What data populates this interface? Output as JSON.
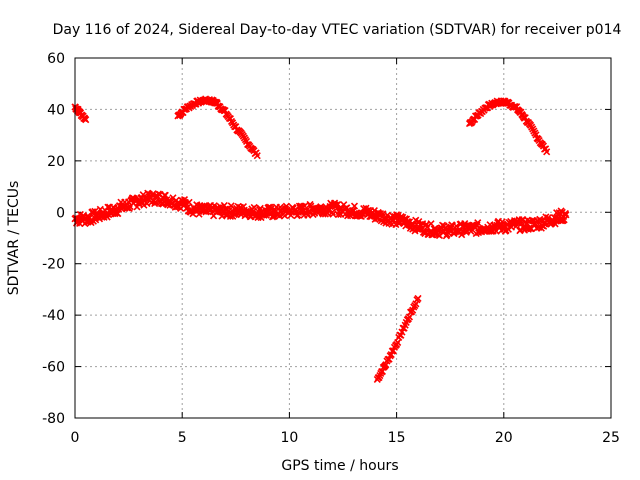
{
  "chart_data": {
    "type": "scatter",
    "title": "Day 116 of 2024, Sidereal Day-to-day VTEC variation (SDTVAR) for receiver p014",
    "xlabel": "GPS time / hours",
    "ylabel": "SDTVAR / TECUs",
    "xlim": [
      0,
      25
    ],
    "ylim": [
      -80,
      60
    ],
    "xticks": [
      0,
      5,
      10,
      15,
      20,
      25
    ],
    "yticks": [
      -80,
      -60,
      -40,
      -20,
      0,
      20,
      40,
      60
    ],
    "xtick_labels": [
      "0",
      "5",
      "10",
      "15",
      "20",
      "25"
    ],
    "ytick_labels": [
      "-80",
      "-60",
      "-40",
      "-20",
      "0",
      "20",
      "40",
      "60"
    ],
    "grid": true,
    "marker_color": "#ff0000",
    "series": [
      {
        "name": "main-band",
        "band_halfwidth": 2.2,
        "x": [
          0.0,
          0.5,
          1.0,
          1.5,
          2.0,
          2.5,
          3.0,
          3.5,
          4.0,
          4.5,
          5.0,
          5.5,
          6.0,
          6.5,
          7.0,
          7.5,
          8.0,
          8.5,
          9.0,
          9.5,
          10.0,
          10.5,
          11.0,
          11.5,
          12.0,
          12.5,
          13.0,
          13.5,
          14.0,
          14.5,
          15.0,
          15.5,
          16.0,
          16.5,
          17.0,
          17.5,
          18.0,
          18.5,
          19.0,
          19.5,
          20.0,
          20.5,
          21.0,
          21.5,
          22.0,
          22.5,
          22.9
        ],
        "y": [
          -2.5,
          -2.5,
          -1.5,
          0.0,
          1.5,
          3.0,
          4.5,
          5.5,
          5.5,
          4.5,
          3.5,
          1.5,
          0.5,
          0.5,
          0.5,
          0.5,
          0.5,
          0.0,
          0.0,
          0.0,
          0.5,
          0.5,
          1.0,
          1.5,
          1.5,
          1.0,
          0.5,
          0.0,
          -1.0,
          -2.0,
          -3.0,
          -4.0,
          -5.5,
          -6.5,
          -7.0,
          -7.0,
          -6.5,
          -6.5,
          -6.0,
          -5.5,
          -5.5,
          -5.0,
          -5.0,
          -4.5,
          -3.5,
          -2.0,
          -1.0
        ]
      },
      {
        "name": "arc-early",
        "x": [
          0.0,
          0.2,
          0.5
        ],
        "y": [
          41,
          39,
          36
        ]
      },
      {
        "name": "arc-morning",
        "x": [
          4.8,
          5.2,
          5.6,
          6.0,
          6.3,
          6.6,
          7.0,
          7.5,
          8.0,
          8.5
        ],
        "y": [
          37.5,
          40.5,
          42.5,
          43.5,
          43.5,
          42.5,
          39.0,
          33.0,
          27.5,
          22.0
        ]
      },
      {
        "name": "arc-afternoon-dip",
        "x": [
          14.1,
          14.5,
          15.0,
          15.5,
          16.0
        ],
        "y": [
          -65,
          -59,
          -51,
          -42,
          -33.5
        ]
      },
      {
        "name": "arc-evening",
        "x": [
          18.4,
          18.8,
          19.2,
          19.6,
          19.9,
          20.2,
          20.6,
          21.0,
          21.5,
          22.0
        ],
        "y": [
          34.5,
          38.0,
          41.0,
          42.5,
          43.0,
          42.5,
          40.5,
          36.5,
          30.0,
          23.5
        ]
      }
    ]
  }
}
